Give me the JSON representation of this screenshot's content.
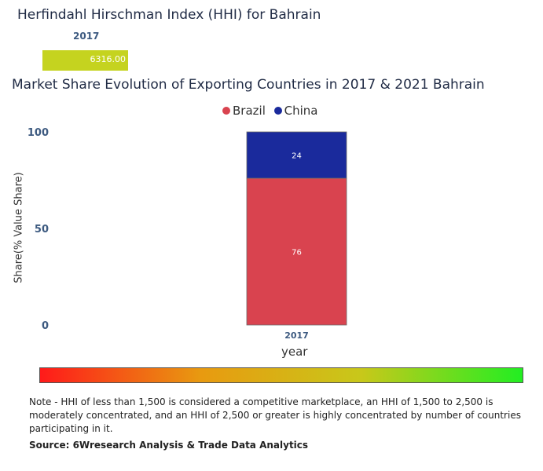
{
  "hhi": {
    "title": "Herfindahl Hirschman Index (HHI) for Bahrain",
    "year": "2017",
    "value_label": "6316.00",
    "value": 6316.0,
    "bar_color": "#c5d31f"
  },
  "chart_data": {
    "type": "bar",
    "stacked": true,
    "title": "Market Share Evolution of Exporting Countries in 2017 & 2021 Bahrain",
    "categories": [
      "2017"
    ],
    "series": [
      {
        "name": "Brazil",
        "values": [
          76
        ],
        "color": "#d9434f"
      },
      {
        "name": "China",
        "values": [
          24
        ],
        "color": "#1a2a9c"
      }
    ],
    "xlabel": "year",
    "ylabel": "Share(% Value Share)",
    "ylim": [
      0,
      100
    ],
    "yticks": [
      0,
      50,
      100
    ],
    "legend_position": "top-center"
  },
  "scale": {
    "gradient_colors": [
      "#ff1a1a",
      "#e89a10",
      "#c8c81a",
      "#22ee22"
    ]
  },
  "note": "Note - HHI of less than 1,500 is considered a competitive marketplace, an HHI of 1,500 to 2,500 is moderately concentrated, and an HHI of 2,500 or greater is highly concentrated by number of countries participating in it.",
  "source": "Source: 6Wresearch Analysis & Trade Data Analytics"
}
